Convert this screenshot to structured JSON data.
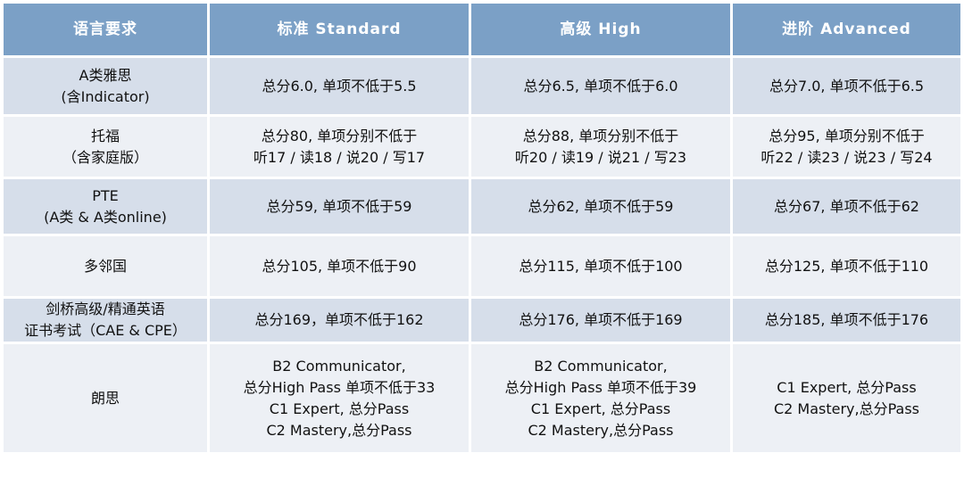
{
  "colors": {
    "header_bg": "#7ba0c6",
    "row_dark": "#d6deea",
    "row_light": "#edf0f5"
  },
  "headers": [
    "语言要求",
    "标准 Standard",
    "高级 High",
    "进阶 Advanced"
  ],
  "rows": [
    {
      "name": [
        "A类雅思",
        "(含Indicator)"
      ],
      "standard": [
        "总分6.0, 单项不低于5.5"
      ],
      "high": [
        "总分6.5, 单项不低于6.0"
      ],
      "advanced": [
        "总分7.0, 单项不低于6.5"
      ]
    },
    {
      "name": [
        "托福",
        "（含家庭版）"
      ],
      "standard": [
        "总分80, 单项分别不低于",
        "听17 / 读18 / 说20 / 写17"
      ],
      "high": [
        "总分88, 单项分别不低于",
        "听20 / 读19 / 说21 / 写23"
      ],
      "advanced": [
        "总分95, 单项分别不低于",
        "听22 / 读23 / 说23 / 写24"
      ]
    },
    {
      "name": [
        "PTE",
        "(A类 & A类online)"
      ],
      "standard": [
        "总分59, 单项不低于59"
      ],
      "high": [
        "总分62, 单项不低于59"
      ],
      "advanced": [
        "总分67, 单项不低于62"
      ]
    },
    {
      "name": [
        "多邻国"
      ],
      "standard": [
        "总分105, 单项不低于90"
      ],
      "high": [
        "总分115, 单项不低于100"
      ],
      "advanced": [
        "总分125, 单项不低于110"
      ]
    },
    {
      "name": [
        "剑桥高级/精通英语",
        "证书考试（CAE & CPE）"
      ],
      "standard": [
        "总分169，单项不低于162"
      ],
      "high": [
        "总分176, 单项不低于169"
      ],
      "advanced": [
        "总分185, 单项不低于176"
      ]
    },
    {
      "name": [
        "朗思"
      ],
      "standard": [
        "B2 Communicator,",
        "总分High Pass 单项不低于33",
        "C1 Expert, 总分Pass",
        "C2 Mastery,总分Pass"
      ],
      "high": [
        "B2 Communicator,",
        "总分High Pass 单项不低于39",
        "C1 Expert, 总分Pass",
        "C2 Mastery,总分Pass"
      ],
      "advanced": [
        "C1 Expert, 总分Pass",
        "C2 Mastery,总分Pass"
      ]
    }
  ]
}
